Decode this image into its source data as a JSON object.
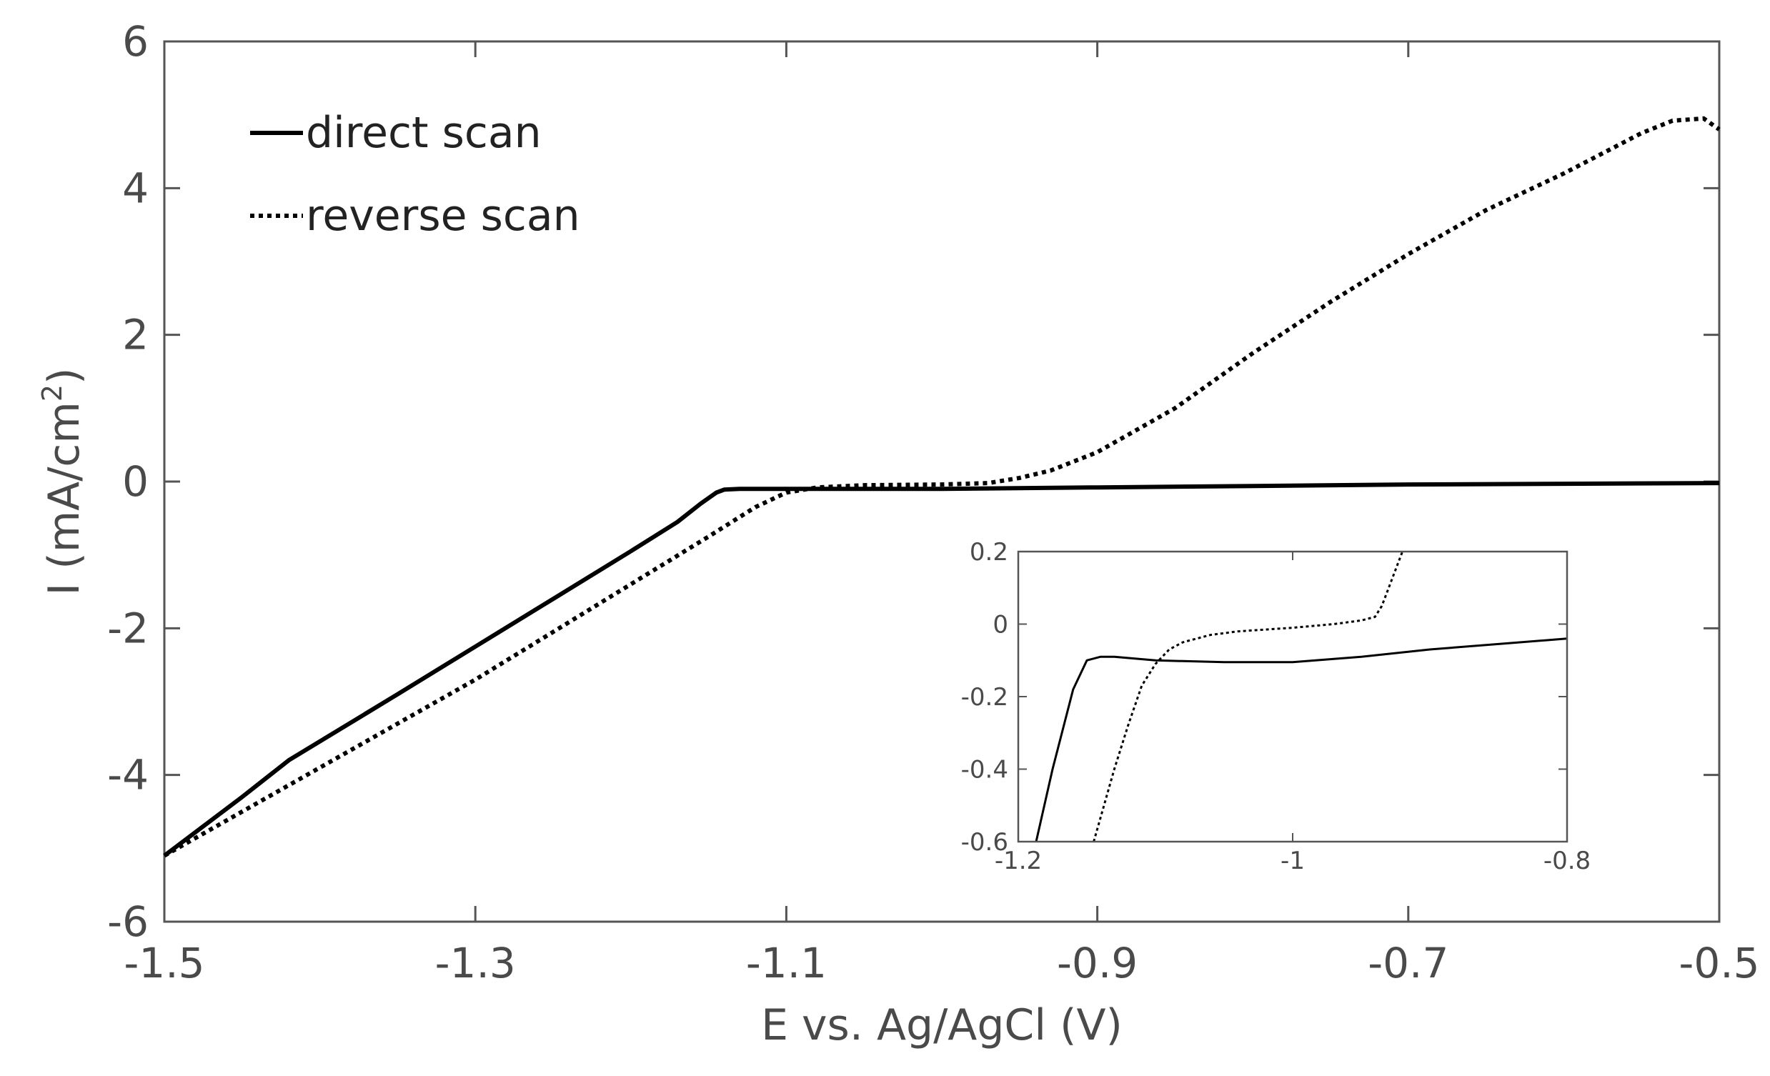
{
  "chart_data": [
    {
      "type": "line",
      "xlabel": "E vs. Ag/AgCl (V)",
      "ylabel_main": "I (mA/cm",
      "ylabel_sup": "2",
      "ylabel_close": ")",
      "xlim": [
        -1.5,
        -0.5
      ],
      "ylim": [
        -6,
        6
      ],
      "xticks": [
        -1.5,
        -1.3,
        -1.1,
        -0.9,
        -0.7,
        -0.5
      ],
      "xtick_labels": [
        "-1.5",
        "-1.3",
        "-1.1",
        "-0.9",
        "-0.7",
        "-0.5"
      ],
      "yticks": [
        -6,
        -4,
        -2,
        0,
        2,
        4,
        6
      ],
      "ytick_labels": [
        "-6",
        "-4",
        "-2",
        "0",
        "2",
        "4",
        "6"
      ],
      "grid": false,
      "legend": {
        "placement": "top-left",
        "entries": [
          "direct scan",
          "reverse scan"
        ]
      },
      "series": [
        {
          "name": "direct scan",
          "style": "solid",
          "color": "#000000",
          "x": [
            -1.5,
            -1.45,
            -1.42,
            -1.35,
            -1.3,
            -1.25,
            -1.2,
            -1.17,
            -1.155,
            -1.145,
            -1.14,
            -1.13,
            -1.1,
            -1.0,
            -0.9,
            -0.8,
            -0.7,
            -0.6,
            -0.5
          ],
          "y": [
            -5.1,
            -4.3,
            -3.8,
            -2.9,
            -2.25,
            -1.6,
            -0.95,
            -0.55,
            -0.3,
            -0.15,
            -0.11,
            -0.1,
            -0.1,
            -0.1,
            -0.08,
            -0.06,
            -0.04,
            -0.03,
            -0.02
          ]
        },
        {
          "name": "reverse scan",
          "style": "dotted",
          "color": "#000000",
          "x": [
            -1.5,
            -1.45,
            -1.4,
            -1.35,
            -1.3,
            -1.25,
            -1.2,
            -1.15,
            -1.12,
            -1.1,
            -1.08,
            -1.05,
            -1.0,
            -0.97,
            -0.95,
            -0.93,
            -0.9,
            -0.85,
            -0.8,
            -0.75,
            -0.7,
            -0.65,
            -0.6,
            -0.55,
            -0.53,
            -0.51,
            -0.5
          ],
          "y": [
            -5.1,
            -4.5,
            -3.9,
            -3.3,
            -2.7,
            -2.05,
            -1.4,
            -0.75,
            -0.35,
            -0.15,
            -0.08,
            -0.05,
            -0.04,
            -0.02,
            0.05,
            0.15,
            0.4,
            1.0,
            1.75,
            2.45,
            3.1,
            3.7,
            4.2,
            4.75,
            4.92,
            4.95,
            4.8
          ]
        }
      ]
    },
    {
      "type": "line",
      "placement": "inset lower-right",
      "xlim": [
        -1.2,
        -0.8
      ],
      "ylim": [
        -0.6,
        0.2
      ],
      "xticks": [
        -1.2,
        -1.0,
        -0.8
      ],
      "xtick_labels": [
        "-1.2",
        "-1",
        "-0.8"
      ],
      "yticks": [
        -0.6,
        -0.4,
        -0.2,
        0,
        0.2
      ],
      "ytick_labels": [
        "-0.6",
        "-0.4",
        "-0.2",
        "0",
        "0.2"
      ],
      "grid": false,
      "series": [
        {
          "style": "solid",
          "color": "#000000",
          "x": [
            -1.187,
            -1.175,
            -1.16,
            -1.15,
            -1.14,
            -1.13,
            -1.1,
            -1.05,
            -1.0,
            -0.95,
            -0.9,
            -0.85,
            -0.8
          ],
          "y": [
            -0.6,
            -0.4,
            -0.18,
            -0.1,
            -0.09,
            -0.09,
            -0.1,
            -0.105,
            -0.105,
            -0.09,
            -0.07,
            -0.055,
            -0.04
          ]
        },
        {
          "style": "dotted",
          "color": "#000000",
          "x": [
            -1.145,
            -1.13,
            -1.12,
            -1.11,
            -1.1,
            -1.09,
            -1.08,
            -1.06,
            -1.04,
            -1.0,
            -0.97,
            -0.95,
            -0.94,
            -0.935,
            -0.93,
            -0.925,
            -0.92
          ],
          "y": [
            -0.6,
            -0.4,
            -0.28,
            -0.17,
            -0.11,
            -0.07,
            -0.05,
            -0.03,
            -0.02,
            -0.01,
            0.0,
            0.01,
            0.02,
            0.05,
            0.1,
            0.15,
            0.2
          ]
        }
      ]
    }
  ]
}
